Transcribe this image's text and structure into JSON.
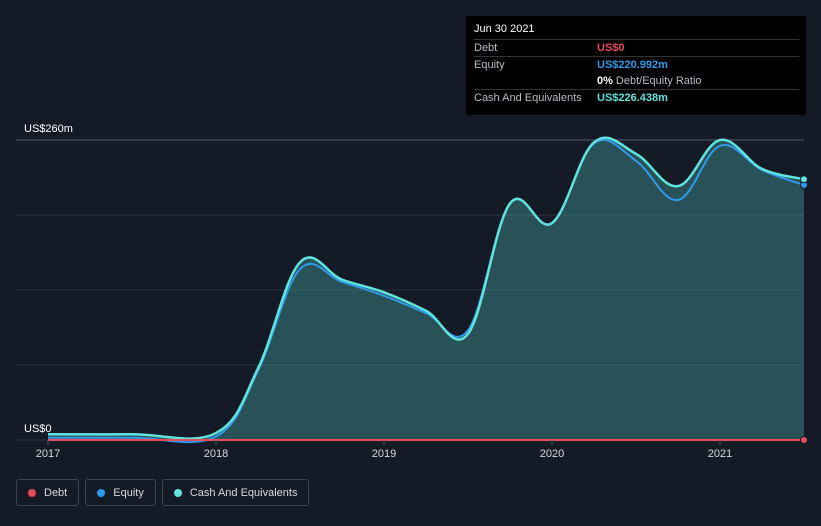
{
  "tooltip": {
    "date": "Jun 30 2021",
    "rows": [
      {
        "label": "Debt",
        "value": "US$0",
        "color": "#e84c5a"
      },
      {
        "label": "Equity",
        "value": "US$220.992m",
        "color": "#2e9bea"
      },
      {
        "label": "",
        "value": "0%",
        "extra": "Debt/Equity Ratio",
        "color": "#ffffff"
      },
      {
        "label": "Cash And Equivalents",
        "value": "US$226.438m",
        "color": "#5fe3dc"
      }
    ]
  },
  "legend": [
    {
      "label": "Debt",
      "color": "#e84c5a"
    },
    {
      "label": "Equity",
      "color": "#2e9bea"
    },
    {
      "label": "Cash And Equivalents",
      "color": "#5fe3dc"
    }
  ],
  "chart_data": {
    "type": "area",
    "ylim": [
      0,
      260
    ],
    "ylabel_top": "US$260m",
    "ylabel_bottom": "US$0",
    "xlim": [
      2017.0,
      2021.5
    ],
    "xticks": [
      2017,
      2018,
      2019,
      2020,
      2021
    ],
    "xtick_labels": [
      "2017",
      "2018",
      "2019",
      "2020",
      "2021"
    ],
    "series": [
      {
        "name": "Debt",
        "color": "#e84c5a",
        "x": [
          2017.0,
          2021.5
        ],
        "y": [
          0,
          0
        ]
      },
      {
        "name": "Equity",
        "color": "#2e9bea",
        "x": [
          2017.0,
          2017.5,
          2018.0,
          2018.25,
          2018.5,
          2018.75,
          2019.0,
          2019.25,
          2019.5,
          2019.75,
          2020.0,
          2020.25,
          2020.5,
          2020.75,
          2021.0,
          2021.25,
          2021.5
        ],
        "y": [
          2,
          2,
          3,
          60,
          148,
          137,
          125,
          110,
          95,
          205,
          188,
          257,
          242,
          208,
          255,
          234,
          221
        ]
      },
      {
        "name": "Cash And Equivalents",
        "color": "#5fe3dc",
        "x": [
          2017.0,
          2017.5,
          2018.0,
          2018.25,
          2018.5,
          2018.75,
          2019.0,
          2019.25,
          2019.5,
          2019.75,
          2020.0,
          2020.25,
          2020.5,
          2020.75,
          2021.0,
          2021.25,
          2021.5
        ],
        "y": [
          5,
          5,
          6,
          62,
          154,
          139,
          128,
          112,
          92,
          205,
          188,
          258,
          248,
          220,
          260,
          235,
          226
        ]
      }
    ]
  }
}
